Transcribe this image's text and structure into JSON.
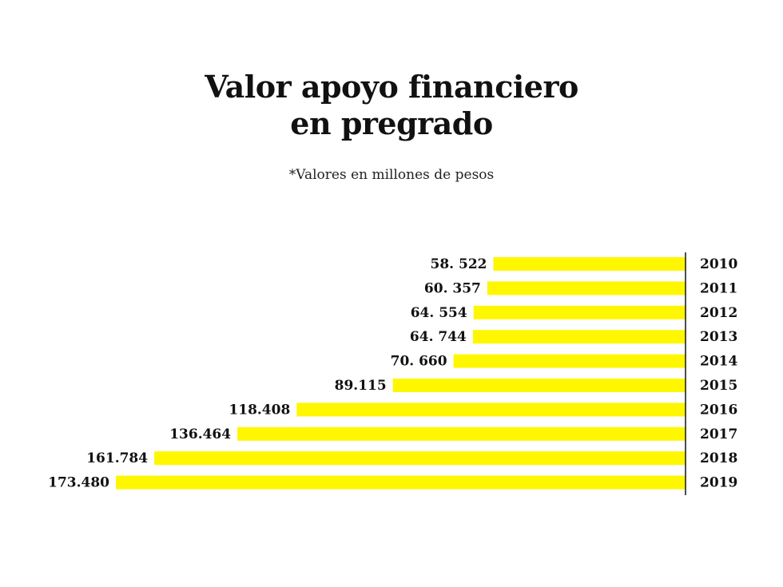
{
  "title_line1": "Valor apoyo financiero",
  "title_line2": "en pregrado",
  "subtitle": "*Valores en millones de pesos",
  "colors": {
    "bar": "#fff700",
    "text": "#111111",
    "axis": "#111111"
  },
  "chart_data": {
    "type": "bar",
    "orientation": "horizontal",
    "categories": [
      "2010",
      "2011",
      "2012",
      "2013",
      "2014",
      "2015",
      "2016",
      "2017",
      "2018",
      "2019"
    ],
    "values": [
      58522,
      60357,
      64554,
      64744,
      70660,
      89115,
      118408,
      136464,
      161784,
      173480
    ],
    "value_labels": [
      "58. 522",
      "60. 357",
      "64. 554",
      "64. 744",
      "70. 660",
      "89.115",
      "118.408",
      "136.464",
      "161.784",
      "173.480"
    ],
    "unit": "millones de pesos",
    "xlim": [
      0,
      173480
    ],
    "grid": false,
    "legend": "none"
  }
}
